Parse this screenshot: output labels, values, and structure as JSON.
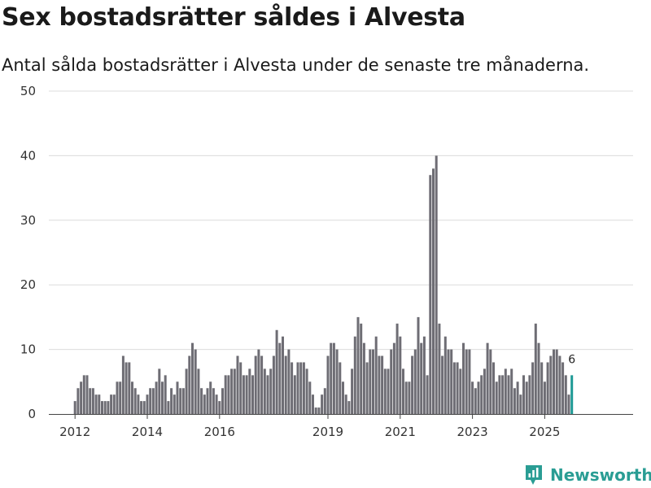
{
  "colors": {
    "bar": "#6e6d74",
    "highlight": "#1e9a95",
    "grid": "#dcdcdc",
    "axis": "#444444",
    "brand": "#2a9d94"
  },
  "brand": {
    "name": "Newsworthy"
  },
  "chart_data": {
    "type": "bar",
    "title": "Sex bostadsrätter såldes i Alvesta",
    "subtitle": "Antal sålda bostadsrätter i Alvesta under de senaste tre månaderna.",
    "xlabel": "",
    "ylabel": "",
    "ylim": [
      0,
      50
    ],
    "yticks": [
      0,
      10,
      20,
      30,
      40,
      50
    ],
    "grid": true,
    "start_year": 2012,
    "start_month": 1,
    "xticks": [
      "2012",
      "2014",
      "2016",
      "2019",
      "2021",
      "2023",
      "2025"
    ],
    "highlight_label": "6",
    "values": [
      2,
      4,
      5,
      6,
      6,
      4,
      4,
      3,
      3,
      2,
      2,
      2,
      3,
      3,
      5,
      5,
      9,
      8,
      8,
      5,
      4,
      3,
      2,
      2,
      3,
      4,
      4,
      5,
      7,
      5,
      6,
      2,
      4,
      3,
      5,
      4,
      4,
      7,
      9,
      11,
      10,
      7,
      4,
      3,
      4,
      5,
      4,
      3,
      2,
      4,
      6,
      6,
      7,
      7,
      9,
      8,
      6,
      6,
      7,
      6,
      9,
      10,
      9,
      7,
      6,
      7,
      9,
      13,
      11,
      12,
      9,
      10,
      8,
      6,
      8,
      8,
      8,
      7,
      5,
      3,
      1,
      1,
      3,
      4,
      9,
      11,
      11,
      10,
      8,
      5,
      3,
      2,
      7,
      12,
      15,
      14,
      11,
      8,
      10,
      10,
      12,
      9,
      9,
      7,
      7,
      10,
      11,
      14,
      12,
      7,
      5,
      5,
      9,
      10,
      15,
      11,
      12,
      6,
      37,
      38,
      40,
      14,
      9,
      12,
      10,
      10,
      8,
      8,
      7,
      11,
      10,
      10,
      5,
      4,
      5,
      6,
      7,
      11,
      10,
      8,
      5,
      6,
      6,
      7,
      6,
      7,
      4,
      5,
      3,
      6,
      5,
      6,
      8,
      14,
      11,
      8,
      5,
      8,
      9,
      10,
      10,
      9,
      8,
      6,
      3,
      6
    ]
  }
}
